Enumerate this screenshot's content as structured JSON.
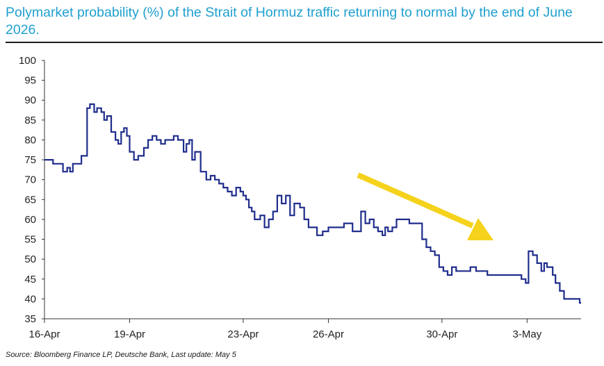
{
  "title": "Polymarket probability (%) of the Strait of Hormuz traffic returning to normal by the end of June 2026.",
  "source": "Source: Bloomberg Finance LP, Deutsche Bank, Last update: May 5",
  "colors": {
    "title": "#1fa0cf",
    "line": "#1f2d8c",
    "arrow": "#f5d21c",
    "axis": "#333333"
  },
  "chart_data": {
    "type": "line",
    "title": "Polymarket probability (%) of the Strait of Hormuz traffic returning to normal by the end of June 2026.",
    "xlabel": "",
    "ylabel": "",
    "ylim": [
      35,
      100
    ],
    "yticks": [
      35,
      40,
      45,
      50,
      55,
      60,
      65,
      70,
      75,
      80,
      85,
      90,
      95,
      100
    ],
    "xticks": [
      {
        "label": "16-Apr",
        "x": 0
      },
      {
        "label": "19-Apr",
        "x": 3
      },
      {
        "label": "23-Apr",
        "x": 7
      },
      {
        "label": "26-Apr",
        "x": 10
      },
      {
        "label": "30-Apr",
        "x": 14
      },
      {
        "label": "3-May",
        "x": 17
      }
    ],
    "x_unit": "days from 16-Apr",
    "grid": false,
    "annotation": "downward arrow",
    "series": [
      {
        "name": "",
        "x": [
          0,
          0.3,
          0.5,
          0.65,
          0.8,
          0.9,
          1.0,
          1.1,
          1.2,
          1.3,
          1.4,
          1.5,
          1.6,
          1.75,
          1.85,
          2.0,
          2.1,
          2.2,
          2.35,
          2.5,
          2.6,
          2.7,
          2.8,
          2.9,
          3.0,
          3.15,
          3.3,
          3.5,
          3.65,
          3.8,
          3.95,
          4.1,
          4.25,
          4.4,
          4.55,
          4.7,
          4.8,
          4.9,
          5.0,
          5.1,
          5.2,
          5.3,
          5.5,
          5.7,
          5.85,
          6.0,
          6.15,
          6.3,
          6.45,
          6.6,
          6.75,
          6.9,
          7.0,
          7.1,
          7.2,
          7.3,
          7.4,
          7.6,
          7.75,
          7.9,
          8.05,
          8.2,
          8.35,
          8.5,
          8.65,
          8.8,
          9.0,
          9.15,
          9.3,
          9.45,
          9.6,
          9.8,
          10.0,
          10.2,
          10.4,
          10.55,
          10.7,
          10.85,
          11.0,
          11.15,
          11.3,
          11.45,
          11.6,
          11.75,
          11.9,
          12.0,
          12.1,
          12.25,
          12.4,
          12.55,
          12.7,
          12.85,
          13.0,
          13.15,
          13.3,
          13.45,
          13.6,
          13.75,
          13.9,
          14.05,
          14.2,
          14.35,
          14.5,
          14.65,
          14.8,
          15.0,
          15.2,
          15.4,
          15.6,
          15.8,
          16.0,
          16.2,
          16.4,
          16.6,
          16.8,
          16.95,
          17.0,
          17.05,
          17.2,
          17.35,
          17.5,
          17.6,
          17.7,
          17.8,
          17.9,
          18.0,
          18.15,
          18.3,
          18.5,
          18.7,
          18.85
        ],
        "values": [
          75,
          74,
          74,
          72,
          73,
          72,
          74,
          74,
          74,
          76,
          76,
          88,
          89,
          87,
          88,
          87,
          85,
          86,
          82,
          80,
          79,
          82,
          83,
          81,
          77,
          75,
          76,
          78,
          80,
          81,
          80,
          79,
          80,
          80,
          81,
          80,
          80,
          77,
          79,
          80,
          75,
          77,
          72,
          70,
          71,
          70,
          69,
          68,
          67,
          66,
          68,
          67,
          66,
          65,
          63,
          62,
          60,
          61,
          58,
          60,
          62,
          66,
          64,
          66,
          61,
          64,
          63,
          60,
          58,
          58,
          56,
          57,
          58,
          58,
          58,
          59,
          59,
          57,
          57,
          62,
          59,
          60,
          58,
          57,
          56,
          58,
          57,
          58,
          60,
          60,
          60,
          59,
          59,
          59,
          55,
          53,
          52,
          51,
          48,
          47,
          46,
          48,
          47,
          47,
          47,
          48,
          47,
          47,
          46,
          46,
          46,
          46,
          46,
          46,
          45,
          44,
          44,
          52,
          51,
          49,
          47,
          49,
          48,
          48,
          46,
          44,
          42,
          40,
          40,
          40,
          39
        ]
      }
    ]
  }
}
